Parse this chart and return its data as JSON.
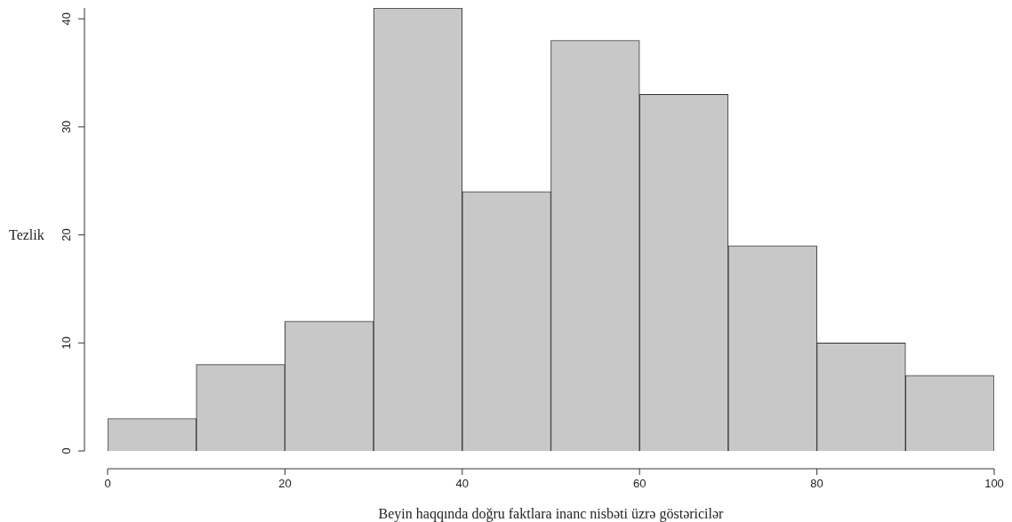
{
  "chart_data": {
    "type": "histogram",
    "xlabel": "Beyin haqqında doğru faktlara inanc nisbəti üzrə göstəricilər",
    "ylabel": "Tezlik",
    "bins": [
      0,
      10,
      20,
      30,
      40,
      50,
      60,
      70,
      80,
      90,
      100
    ],
    "values": [
      3,
      8,
      12,
      41,
      24,
      38,
      33,
      19,
      10,
      7
    ],
    "color": "#c8c8c8",
    "xlim": [
      0,
      100
    ],
    "xticks": [
      0,
      20,
      40,
      60,
      80,
      100
    ],
    "ylim": [
      0,
      41
    ],
    "yticks": [
      0,
      10,
      20,
      30,
      40
    ],
    "grid": false,
    "legend": false
  }
}
